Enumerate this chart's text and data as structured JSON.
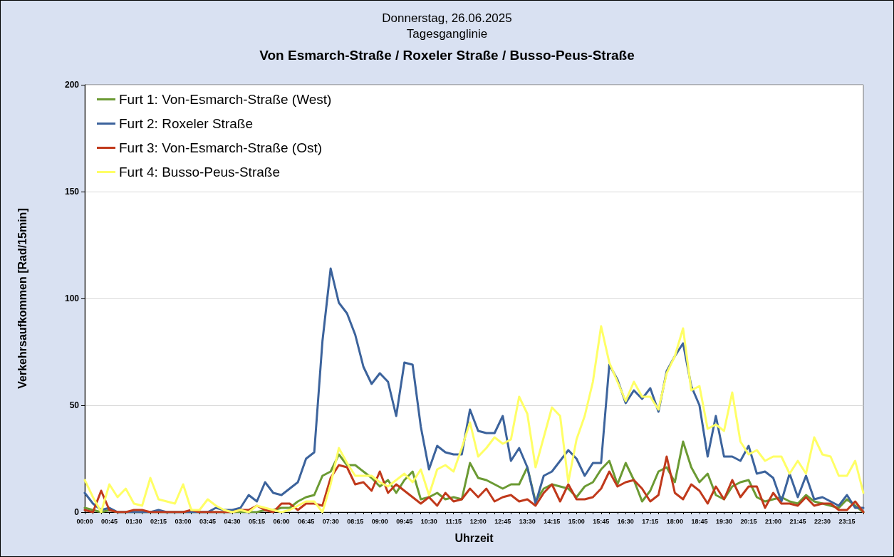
{
  "chart_data": {
    "type": "line",
    "title": "Von Esmarch-Straße / Roxeler Straße / Busso-Peus-Straße",
    "subtitle": "Donnerstag, 26.06.2025\nTagesganglinie",
    "xlabel": "Uhrzeit",
    "ylabel": "Verkehrsaufkommen [Rad/15min]",
    "categories": [
      "00:00",
      null,
      null,
      "00:45",
      null,
      null,
      "01:30",
      null,
      null,
      "02:15",
      null,
      null,
      "03:00",
      null,
      null,
      "03:45",
      null,
      null,
      "04:30",
      null,
      null,
      "05:15",
      null,
      null,
      "06:00",
      null,
      null,
      "06:45",
      null,
      null,
      "07:30",
      null,
      null,
      "08:15",
      null,
      null,
      "09:00",
      null,
      null,
      "09:45",
      null,
      null,
      "10:30",
      null,
      null,
      "11:15",
      null,
      null,
      "12:00",
      null,
      null,
      "12:45",
      null,
      null,
      "13:30",
      null,
      null,
      "14:15",
      null,
      null,
      "15:00",
      null,
      null,
      "15:45",
      null,
      null,
      "16:30",
      null,
      null,
      "17:15",
      null,
      null,
      "18:00",
      null,
      null,
      "18:45",
      null,
      null,
      "19:30",
      null,
      null,
      "20:15",
      null,
      null,
      "21:00",
      null,
      null,
      "21:45",
      null,
      null,
      "22:30",
      null,
      null,
      "23:15",
      null,
      null
    ],
    "series": [
      {
        "name": "Furt 1: Von-Esmarch-Straße (West)",
        "color": "#6b9a33",
        "values": [
          2,
          1,
          0,
          1,
          0,
          0,
          0,
          0,
          0,
          0,
          0,
          0,
          0,
          0,
          0,
          0,
          0,
          0,
          0,
          0,
          0,
          0,
          1,
          1,
          2,
          2,
          5,
          7,
          8,
          17,
          19,
          27,
          22,
          22,
          19,
          16,
          12,
          15,
          9,
          15,
          19,
          6,
          7,
          9,
          6,
          7,
          6,
          23,
          16,
          15,
          13,
          11,
          13,
          13,
          21,
          5,
          11,
          13,
          12,
          11,
          7,
          12,
          14,
          20,
          24,
          13,
          23,
          15,
          5,
          10,
          19,
          21,
          14,
          33,
          21,
          14,
          18,
          8,
          6,
          12,
          14,
          15,
          7,
          5,
          6,
          7,
          5,
          4,
          8,
          5,
          4,
          3,
          2,
          6,
          3,
          0
        ]
      },
      {
        "name": "Furt 2: Roxeler Straße",
        "color": "#3c639c",
        "values": [
          9,
          4,
          1,
          2,
          0,
          0,
          0,
          0,
          0,
          1,
          0,
          0,
          0,
          0,
          0,
          0,
          2,
          1,
          1,
          2,
          8,
          5,
          14,
          9,
          8,
          11,
          14,
          25,
          28,
          80,
          114,
          98,
          93,
          83,
          68,
          60,
          65,
          61,
          45,
          70,
          69,
          40,
          20,
          31,
          28,
          27,
          27,
          48,
          38,
          37,
          37,
          45,
          24,
          30,
          21,
          4,
          17,
          19,
          24,
          29,
          25,
          17,
          23,
          23,
          69,
          62,
          51,
          57,
          53,
          58,
          47,
          66,
          73,
          79,
          59,
          50,
          26,
          45,
          26,
          26,
          24,
          31,
          18,
          19,
          16,
          5,
          18,
          7,
          17,
          6,
          7,
          5,
          3,
          8,
          2,
          2
        ]
      },
      {
        "name": "Furt 3: Von-Esmarch-Straße (Ost)",
        "color": "#c0391b",
        "values": [
          1,
          0,
          10,
          1,
          0,
          0,
          1,
          1,
          0,
          0,
          0,
          0,
          0,
          1,
          0,
          0,
          0,
          0,
          0,
          1,
          1,
          3,
          1,
          0,
          4,
          4,
          1,
          4,
          4,
          3,
          16,
          22,
          21,
          13,
          14,
          10,
          19,
          9,
          13,
          10,
          7,
          4,
          7,
          3,
          9,
          5,
          6,
          11,
          7,
          11,
          5,
          7,
          8,
          5,
          6,
          3,
          9,
          13,
          5,
          13,
          6,
          6,
          7,
          11,
          19,
          12,
          14,
          15,
          11,
          5,
          8,
          26,
          9,
          6,
          13,
          10,
          4,
          12,
          6,
          15,
          7,
          12,
          12,
          2,
          9,
          4,
          4,
          3,
          7,
          3,
          4,
          4,
          1,
          1,
          5,
          0
        ]
      },
      {
        "name": "Furt 4: Busso-Peus-Straße",
        "color": "#ffff66",
        "values": [
          15,
          7,
          0,
          13,
          7,
          11,
          4,
          3,
          16,
          6,
          5,
          4,
          13,
          1,
          1,
          6,
          3,
          1,
          0,
          1,
          0,
          3,
          2,
          1,
          0,
          1,
          3,
          5,
          5,
          0,
          13,
          30,
          23,
          17,
          17,
          17,
          14,
          12,
          15,
          18,
          14,
          20,
          8,
          20,
          22,
          19,
          30,
          42,
          26,
          30,
          35,
          32,
          34,
          54,
          46,
          21,
          35,
          49,
          45,
          14,
          34,
          45,
          61,
          87,
          70,
          61,
          52,
          61,
          54,
          54,
          48,
          65,
          73,
          86,
          57,
          59,
          39,
          41,
          38,
          56,
          33,
          27,
          29,
          24,
          26,
          26,
          18,
          24,
          18,
          35,
          27,
          26,
          17,
          17,
          24,
          9
        ]
      }
    ],
    "ylim": [
      0,
      200
    ],
    "yticks": [
      0,
      50,
      100,
      150,
      200
    ],
    "grid": "y",
    "legend": "top left",
    "line_style": "solid",
    "marker": "none"
  }
}
